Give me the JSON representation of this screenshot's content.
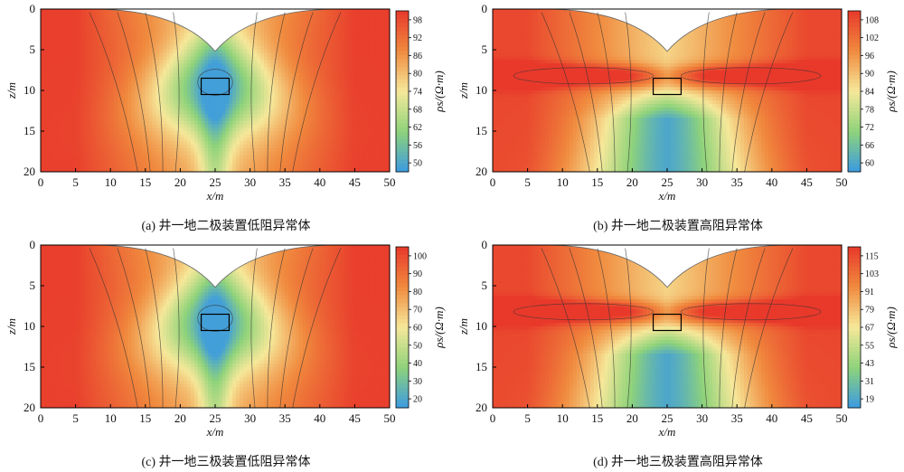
{
  "chart_data": [
    {
      "type": "heatmap",
      "panel_label": "(a)",
      "title": "井一地二极装置低阻异常体",
      "xlabel": "x/m",
      "ylabel": "z/m",
      "xlim": [
        0,
        50
      ],
      "ylim": [
        0,
        20
      ],
      "x_ticks": [
        0,
        5,
        10,
        15,
        20,
        25,
        30,
        35,
        40,
        45,
        50
      ],
      "y_ticks": [
        0,
        5,
        10,
        15,
        20
      ],
      "colorbar_label": "ρs/(Ω·m)",
      "colorbar_ticks": [
        98,
        92,
        86,
        80,
        74,
        68,
        62,
        56,
        50
      ],
      "colorbar_range": [
        47,
        101
      ],
      "anomaly": "low",
      "anomaly_box": {
        "x": [
          23,
          27
        ],
        "z": [
          8.5,
          10.5
        ]
      },
      "grid": false
    },
    {
      "type": "heatmap",
      "panel_label": "(b)",
      "title": "井一地二极装置高阻异常体",
      "xlabel": "x/m",
      "ylabel": "z/m",
      "xlim": [
        0,
        50
      ],
      "ylim": [
        0,
        20
      ],
      "x_ticks": [
        0,
        5,
        10,
        15,
        20,
        25,
        30,
        35,
        40,
        45,
        50
      ],
      "y_ticks": [
        0,
        5,
        10,
        15,
        20
      ],
      "colorbar_label": "ρs/(Ω·m)",
      "colorbar_ticks": [
        108,
        102,
        96,
        90,
        84,
        78,
        72,
        66,
        60
      ],
      "colorbar_range": [
        57,
        111
      ],
      "anomaly": "high",
      "anomaly_box": {
        "x": [
          23,
          27
        ],
        "z": [
          8.5,
          10.5
        ]
      },
      "grid": false
    },
    {
      "type": "heatmap",
      "panel_label": "(c)",
      "title": "井一地三极装置低阻异常体",
      "xlabel": "x/m",
      "ylabel": "z/m",
      "xlim": [
        0,
        50
      ],
      "ylim": [
        0,
        20
      ],
      "x_ticks": [
        0,
        5,
        10,
        15,
        20,
        25,
        30,
        35,
        40,
        45,
        50
      ],
      "y_ticks": [
        0,
        5,
        10,
        15,
        20
      ],
      "colorbar_label": "ρs/(Ω·m)",
      "colorbar_ticks": [
        100,
        90,
        80,
        70,
        60,
        50,
        40,
        30,
        20
      ],
      "colorbar_range": [
        15,
        105
      ],
      "anomaly": "low",
      "anomaly_box": {
        "x": [
          23,
          27
        ],
        "z": [
          8.5,
          10.5
        ]
      },
      "grid": false
    },
    {
      "type": "heatmap",
      "panel_label": "(d)",
      "title": "井一地三极装置高阻异常体",
      "xlabel": "x/m",
      "ylabel": "z/m",
      "xlim": [
        0,
        50
      ],
      "ylim": [
        0,
        20
      ],
      "x_ticks": [
        0,
        5,
        10,
        15,
        20,
        25,
        30,
        35,
        40,
        45,
        50
      ],
      "y_ticks": [
        0,
        5,
        10,
        15,
        20
      ],
      "colorbar_label": "ρs/(Ω·m)",
      "colorbar_ticks": [
        115,
        103,
        91,
        79,
        67,
        55,
        43,
        31,
        19
      ],
      "colorbar_range": [
        13,
        121
      ],
      "anomaly": "high",
      "anomaly_box": {
        "x": [
          23,
          27
        ],
        "z": [
          8.5,
          10.5
        ]
      },
      "grid": false
    }
  ],
  "colors": {
    "high": "#e8392b",
    "mid_high": "#f08a3e",
    "mid": "#f6e89a",
    "mid_low": "#8fd37a",
    "low": "#3c9be0",
    "contour": "#333333",
    "box": "#000000"
  }
}
